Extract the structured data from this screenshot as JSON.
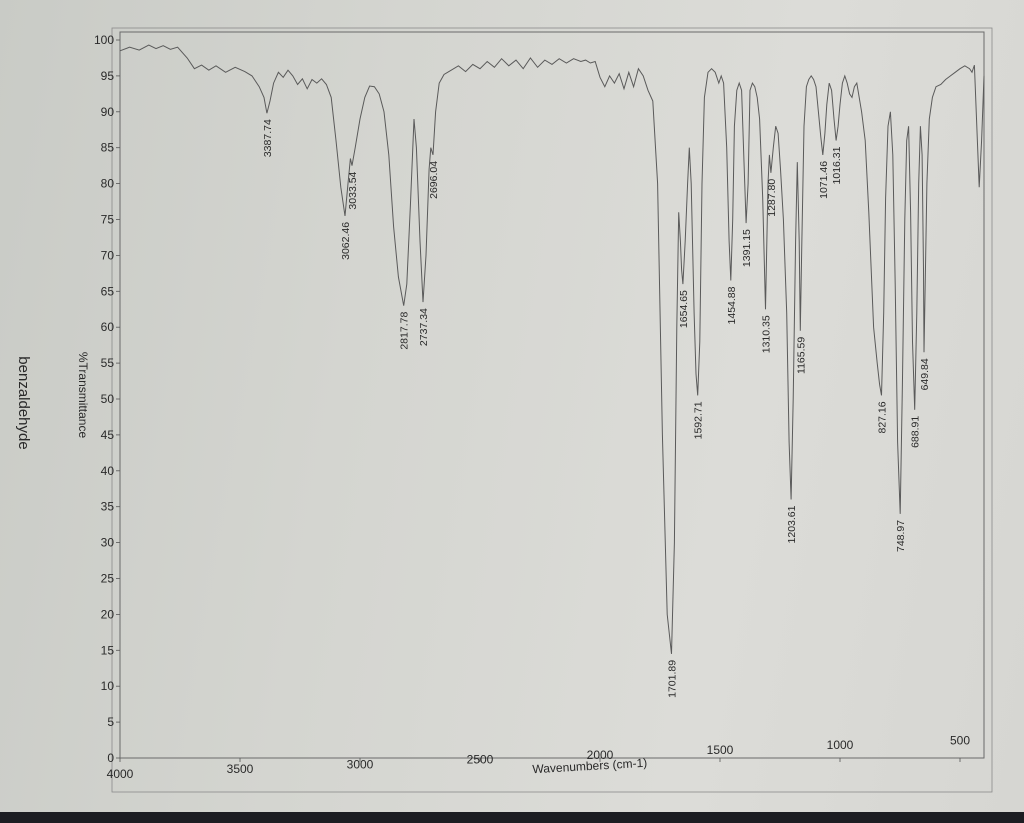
{
  "chart_data": {
    "type": "line",
    "title": "benzaldehyde",
    "xlabel": "Wavenumbers (cm-1)",
    "ylabel": "%Transmittance",
    "xlim": [
      4000,
      400
    ],
    "ylim": [
      0,
      100
    ],
    "xticks": [
      4000,
      3500,
      3000,
      2500,
      2000,
      1500,
      1000,
      500
    ],
    "yticks": [
      0,
      5,
      10,
      15,
      20,
      25,
      30,
      35,
      40,
      45,
      50,
      55,
      60,
      65,
      70,
      75,
      80,
      85,
      90,
      95,
      100
    ],
    "grid": false,
    "series": [
      {
        "points": [
          [
            4000,
            98.5
          ],
          [
            3960,
            99
          ],
          [
            3920,
            98.6
          ],
          [
            3880,
            99.3
          ],
          [
            3850,
            98.8
          ],
          [
            3820,
            99.2
          ],
          [
            3790,
            98.7
          ],
          [
            3760,
            99
          ],
          [
            3720,
            97.5
          ],
          [
            3690,
            96
          ],
          [
            3660,
            96.5
          ],
          [
            3630,
            95.8
          ],
          [
            3600,
            96.4
          ],
          [
            3560,
            95.5
          ],
          [
            3520,
            96.2
          ],
          [
            3480,
            95.6
          ],
          [
            3450,
            95
          ],
          [
            3420,
            93.5
          ],
          [
            3400,
            92
          ],
          [
            3387.74,
            89.8
          ],
          [
            3375,
            91.5
          ],
          [
            3360,
            94
          ],
          [
            3340,
            95.5
          ],
          [
            3320,
            94.8
          ],
          [
            3300,
            95.8
          ],
          [
            3280,
            95
          ],
          [
            3260,
            93.8
          ],
          [
            3240,
            94.6
          ],
          [
            3220,
            93.2
          ],
          [
            3200,
            94.5
          ],
          [
            3180,
            94
          ],
          [
            3160,
            94.6
          ],
          [
            3140,
            93.8
          ],
          [
            3120,
            92
          ],
          [
            3100,
            86
          ],
          [
            3080,
            79.5
          ],
          [
            3062.46,
            75.5
          ],
          [
            3050,
            80
          ],
          [
            3040,
            83.5
          ],
          [
            3033.54,
            82.5
          ],
          [
            3020,
            85
          ],
          [
            3000,
            89
          ],
          [
            2980,
            92
          ],
          [
            2960,
            93.6
          ],
          [
            2940,
            93.5
          ],
          [
            2920,
            92.5
          ],
          [
            2900,
            90
          ],
          [
            2880,
            84
          ],
          [
            2860,
            74
          ],
          [
            2840,
            67
          ],
          [
            2817.78,
            63
          ],
          [
            2805,
            66
          ],
          [
            2790,
            77
          ],
          [
            2775,
            89
          ],
          [
            2765,
            85
          ],
          [
            2750,
            72
          ],
          [
            2737.34,
            63.5
          ],
          [
            2725,
            70
          ],
          [
            2712,
            82
          ],
          [
            2705,
            85
          ],
          [
            2696.04,
            84
          ],
          [
            2685,
            90
          ],
          [
            2670,
            94
          ],
          [
            2650,
            95.2
          ],
          [
            2620,
            95.8
          ],
          [
            2590,
            96.4
          ],
          [
            2560,
            95.6
          ],
          [
            2530,
            96.6
          ],
          [
            2500,
            96
          ],
          [
            2470,
            97
          ],
          [
            2440,
            96.2
          ],
          [
            2410,
            97.4
          ],
          [
            2380,
            96.4
          ],
          [
            2350,
            97.2
          ],
          [
            2320,
            96
          ],
          [
            2290,
            97.5
          ],
          [
            2260,
            96.2
          ],
          [
            2230,
            97.2
          ],
          [
            2200,
            96.6
          ],
          [
            2170,
            97.4
          ],
          [
            2140,
            96.8
          ],
          [
            2110,
            97.4
          ],
          [
            2080,
            97
          ],
          [
            2060,
            97.2
          ],
          [
            2040,
            96.8
          ],
          [
            2020,
            97
          ],
          [
            2000,
            94.8
          ],
          [
            1980,
            93.5
          ],
          [
            1960,
            95
          ],
          [
            1940,
            94
          ],
          [
            1920,
            95.3
          ],
          [
            1900,
            93.2
          ],
          [
            1880,
            95.5
          ],
          [
            1860,
            93.5
          ],
          [
            1840,
            96
          ],
          [
            1820,
            95
          ],
          [
            1800,
            93
          ],
          [
            1780,
            91.5
          ],
          [
            1760,
            80
          ],
          [
            1740,
            45
          ],
          [
            1720,
            20
          ],
          [
            1701.89,
            14.5
          ],
          [
            1690,
            30
          ],
          [
            1680,
            60
          ],
          [
            1672,
            76
          ],
          [
            1665,
            72
          ],
          [
            1660,
            68
          ],
          [
            1654.65,
            66
          ],
          [
            1645,
            72
          ],
          [
            1635,
            80
          ],
          [
            1628,
            85
          ],
          [
            1620,
            80
          ],
          [
            1608,
            62
          ],
          [
            1600,
            53.5
          ],
          [
            1592.71,
            50.5
          ],
          [
            1584,
            58
          ],
          [
            1575,
            80
          ],
          [
            1565,
            92
          ],
          [
            1550,
            95.5
          ],
          [
            1535,
            96
          ],
          [
            1520,
            95.5
          ],
          [
            1505,
            94
          ],
          [
            1495,
            95
          ],
          [
            1485,
            94
          ],
          [
            1472,
            85
          ],
          [
            1462,
            72
          ],
          [
            1454.88,
            66.5
          ],
          [
            1447,
            75
          ],
          [
            1440,
            88
          ],
          [
            1430,
            93
          ],
          [
            1420,
            94
          ],
          [
            1410,
            93
          ],
          [
            1400,
            83
          ],
          [
            1391.15,
            74.5
          ],
          [
            1383,
            80
          ],
          [
            1375,
            93
          ],
          [
            1365,
            94
          ],
          [
            1355,
            93.5
          ],
          [
            1345,
            92
          ],
          [
            1335,
            89
          ],
          [
            1322,
            78
          ],
          [
            1310.35,
            62.5
          ],
          [
            1300,
            80
          ],
          [
            1294,
            84
          ],
          [
            1287.8,
            81.5
          ],
          [
            1278,
            85
          ],
          [
            1268,
            88
          ],
          [
            1258,
            87
          ],
          [
            1248,
            82
          ],
          [
            1236,
            75
          ],
          [
            1222,
            62
          ],
          [
            1212,
            44
          ],
          [
            1203.61,
            36
          ],
          [
            1195,
            50
          ],
          [
            1185,
            72
          ],
          [
            1178,
            83
          ],
          [
            1170,
            72
          ],
          [
            1165.59,
            59.5
          ],
          [
            1160,
            70
          ],
          [
            1150,
            88
          ],
          [
            1140,
            93.5
          ],
          [
            1130,
            94.5
          ],
          [
            1120,
            95
          ],
          [
            1110,
            94.5
          ],
          [
            1100,
            93.5
          ],
          [
            1090,
            90
          ],
          [
            1080,
            86.5
          ],
          [
            1071.46,
            84
          ],
          [
            1063,
            87
          ],
          [
            1055,
            91
          ],
          [
            1045,
            94
          ],
          [
            1035,
            93
          ],
          [
            1025,
            89
          ],
          [
            1016.31,
            86
          ],
          [
            1008,
            88
          ],
          [
            1000,
            91
          ],
          [
            990,
            94
          ],
          [
            980,
            95
          ],
          [
            970,
            94
          ],
          [
            960,
            92.5
          ],
          [
            950,
            92
          ],
          [
            940,
            93.5
          ],
          [
            930,
            94
          ],
          [
            920,
            92
          ],
          [
            910,
            90
          ],
          [
            895,
            86
          ],
          [
            880,
            76
          ],
          [
            860,
            60
          ],
          [
            845,
            55
          ],
          [
            835,
            52
          ],
          [
            827.16,
            50.5
          ],
          [
            818,
            62
          ],
          [
            810,
            78
          ],
          [
            800,
            88
          ],
          [
            790,
            90
          ],
          [
            780,
            84
          ],
          [
            770,
            66
          ],
          [
            760,
            44
          ],
          [
            748.97,
            34
          ],
          [
            740,
            52
          ],
          [
            730,
            75
          ],
          [
            722,
            86
          ],
          [
            714,
            88
          ],
          [
            706,
            76
          ],
          [
            698,
            58
          ],
          [
            688.91,
            48.5
          ],
          [
            680,
            62
          ],
          [
            672,
            80
          ],
          [
            665,
            88
          ],
          [
            658,
            84
          ],
          [
            652,
            68
          ],
          [
            649.84,
            56.5
          ],
          [
            645,
            66
          ],
          [
            638,
            80
          ],
          [
            628,
            89
          ],
          [
            615,
            92
          ],
          [
            600,
            93.5
          ],
          [
            580,
            93.8
          ],
          [
            560,
            94.5
          ],
          [
            540,
            95
          ],
          [
            520,
            95.5
          ],
          [
            500,
            96
          ],
          [
            480,
            96.4
          ],
          [
            460,
            96
          ],
          [
            450,
            95.5
          ],
          [
            440,
            96.5
          ],
          [
            430,
            88
          ],
          [
            420,
            79.5
          ],
          [
            410,
            86
          ],
          [
            400,
            95
          ]
        ]
      }
    ],
    "annotations": [
      {
        "x": 3387.74,
        "y": 89.8,
        "label": "3387.74"
      },
      {
        "x": 3062.46,
        "y": 75.5,
        "label": "3062.46"
      },
      {
        "x": 3033.54,
        "y": 82.5,
        "label": "3033.54"
      },
      {
        "x": 2817.78,
        "y": 63,
        "label": "2817.78"
      },
      {
        "x": 2737.34,
        "y": 63.5,
        "label": "2737.34"
      },
      {
        "x": 2696.04,
        "y": 84,
        "label": "2696.04"
      },
      {
        "x": 1701.89,
        "y": 14.5,
        "label": "1701.89"
      },
      {
        "x": 1654.65,
        "y": 66,
        "label": "1654.65"
      },
      {
        "x": 1592.71,
        "y": 50.5,
        "label": "1592.71"
      },
      {
        "x": 1454.88,
        "y": 66.5,
        "label": "1454.88"
      },
      {
        "x": 1391.15,
        "y": 74.5,
        "label": "1391.15"
      },
      {
        "x": 1310.35,
        "y": 62.5,
        "label": "1310.35"
      },
      {
        "x": 1287.8,
        "y": 81.5,
        "label": "1287.80"
      },
      {
        "x": 1203.61,
        "y": 36,
        "label": "1203.61"
      },
      {
        "x": 1165.59,
        "y": 59.5,
        "label": "1165.59"
      },
      {
        "x": 1071.46,
        "y": 84,
        "label": "1071.46"
      },
      {
        "x": 1016.31,
        "y": 86,
        "label": "1016.31"
      },
      {
        "x": 827.16,
        "y": 50.5,
        "label": "827.16"
      },
      {
        "x": 748.97,
        "y": 34,
        "label": "748.97"
      },
      {
        "x": 688.91,
        "y": 48.5,
        "label": "688.91"
      },
      {
        "x": 649.84,
        "y": 56.5,
        "label": "649.84"
      }
    ]
  }
}
